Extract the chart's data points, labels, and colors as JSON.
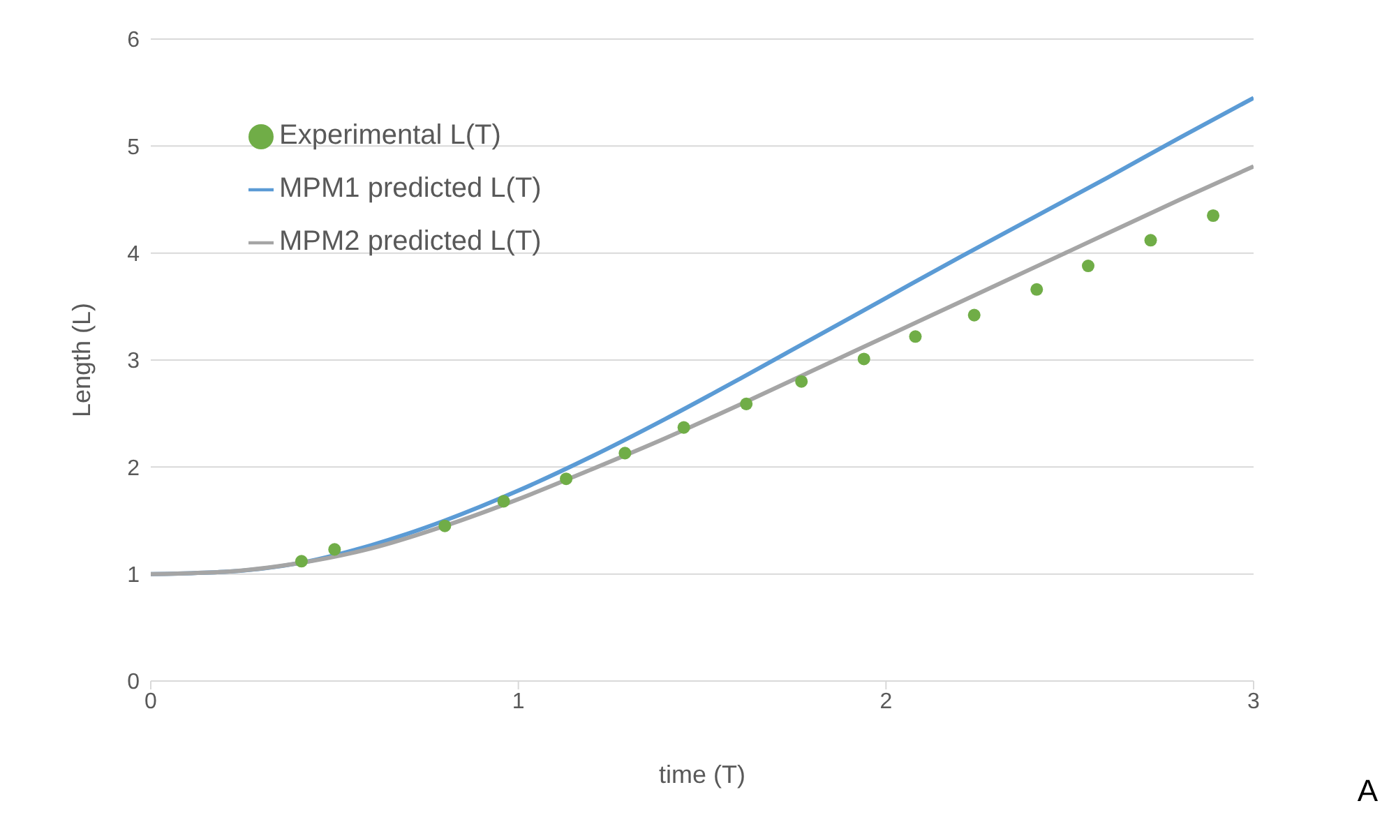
{
  "chart_data": {
    "type": "line",
    "xlabel": "time (T)",
    "ylabel": "Length (L)",
    "xlim": [
      0,
      3
    ],
    "xticks": [
      0,
      1,
      2,
      3
    ],
    "ylim": [
      0,
      6
    ],
    "yticks": [
      0,
      1,
      2,
      3,
      4,
      5,
      6
    ],
    "grid": "y",
    "legend": "top left",
    "annotations": [
      "A"
    ],
    "series": [
      {
        "name": "Experimental L(T)",
        "type": "scatter",
        "color": "#70ad47",
        "marker": "circle",
        "x": [
          0.41,
          0.5,
          0.8,
          0.96,
          1.13,
          1.29,
          1.45,
          1.62,
          1.77,
          1.94,
          2.08,
          2.24,
          2.41,
          2.55,
          2.72,
          2.89
        ],
        "values": [
          1.12,
          1.23,
          1.45,
          1.68,
          1.89,
          2.13,
          2.37,
          2.59,
          2.8,
          3.01,
          3.22,
          3.42,
          3.66,
          3.88,
          4.12,
          4.35
        ]
      },
      {
        "name": "MPM1 predicted L(T)",
        "type": "line",
        "color": "#5b9bd5",
        "x": [
          0,
          0.2,
          0.4,
          0.6,
          0.8,
          1.0,
          1.2,
          1.4,
          1.6,
          1.8,
          2.0,
          2.2,
          2.4,
          2.6,
          2.8,
          3.0
        ],
        "values": [
          1,
          1.02,
          1.1,
          1.27,
          1.5,
          1.78,
          2.1,
          2.45,
          2.82,
          3.2,
          3.58,
          3.96,
          4.33,
          4.7,
          5.08,
          5.45
        ]
      },
      {
        "name": "MPM2 predicted L(T)",
        "type": "line",
        "color": "#a5a5a5",
        "x": [
          0,
          0.2,
          0.4,
          0.6,
          0.8,
          1.0,
          1.2,
          1.4,
          1.6,
          1.8,
          2.0,
          2.2,
          2.4,
          2.6,
          2.8,
          3.0
        ],
        "values": [
          1,
          1.02,
          1.1,
          1.24,
          1.45,
          1.7,
          1.98,
          2.27,
          2.58,
          2.9,
          3.22,
          3.54,
          3.86,
          4.18,
          4.5,
          4.81
        ]
      }
    ]
  }
}
